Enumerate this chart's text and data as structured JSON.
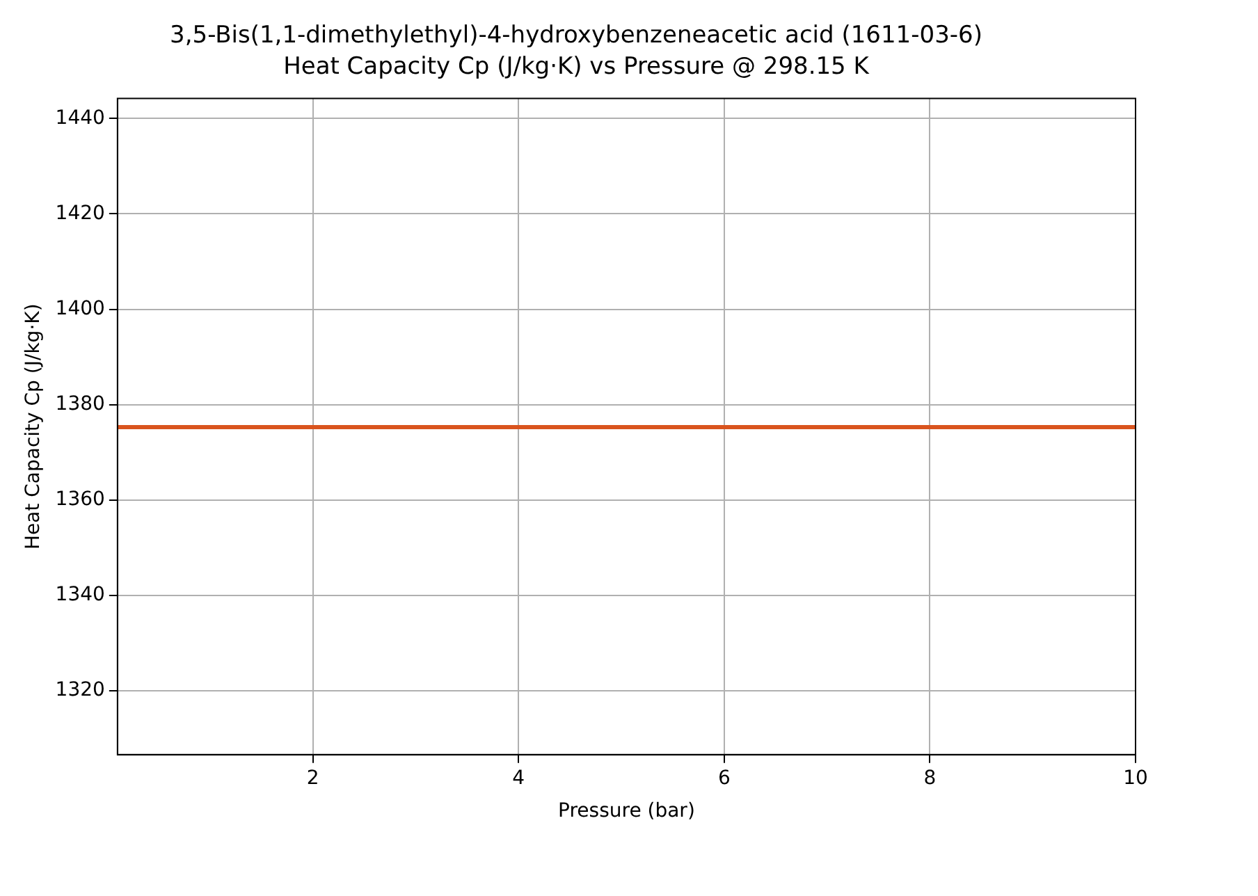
{
  "chart_data": {
    "type": "line",
    "title": "3,5-Bis(1,1-dimethylethyl)-4-hydroxybenzeneacetic acid (1611-03-6)",
    "subtitle": "Heat Capacity Cp (J/kg·K) vs Pressure @ 298.15 K",
    "xlabel": "Pressure (bar)",
    "ylabel": "Heat Capacity Cp (J/kg·K)",
    "x": [
      0.1,
      10
    ],
    "series": [
      {
        "color": "#d9541e",
        "values": [
          1375.3,
          1375.3
        ]
      }
    ],
    "xlim": [
      0.1,
      10
    ],
    "xticks": [
      2,
      4,
      6,
      8,
      10
    ],
    "ylim": [
      1306.6,
      1444.2
    ],
    "yticks": [
      1320,
      1340,
      1360,
      1380,
      1400,
      1420,
      1440
    ],
    "grid": true,
    "legend": false,
    "marker": "none",
    "line_style": "solid"
  }
}
